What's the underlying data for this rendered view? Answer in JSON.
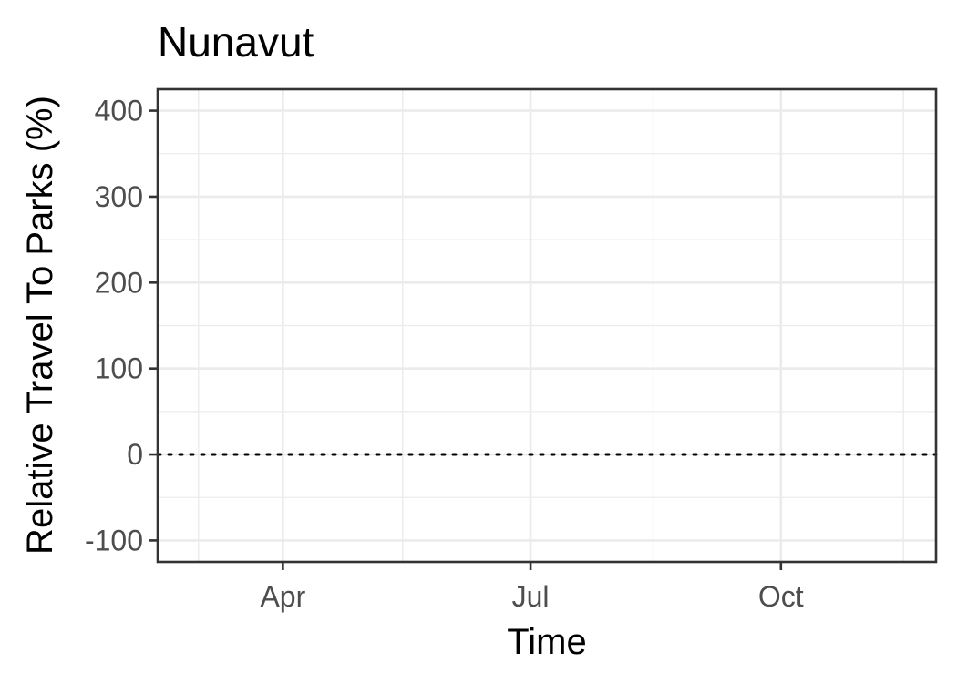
{
  "chart_data": {
    "type": "line",
    "title": "Nunavut",
    "xlabel": "Time",
    "ylabel": "Relative Travel To Parks (%)",
    "x_type": "date",
    "xlim": [
      "2020-02-15",
      "2020-11-27"
    ],
    "ylim": [
      -125,
      425
    ],
    "x_ticks": [
      {
        "date": "2020-04-01",
        "label": "Apr"
      },
      {
        "date": "2020-07-01",
        "label": "Jul"
      },
      {
        "date": "2020-10-01",
        "label": "Oct"
      }
    ],
    "x_minor_ticks": [
      "2020-03-01",
      "2020-05-15",
      "2020-08-15",
      "2020-11-15"
    ],
    "y_ticks": [
      -100,
      0,
      100,
      200,
      300,
      400
    ],
    "y_minor_ticks": [
      -50,
      50,
      150,
      250,
      350
    ],
    "reference_line": {
      "y": 0,
      "style": "dotted",
      "color": "#000000"
    },
    "series": [],
    "grid": true,
    "legend": "none"
  }
}
